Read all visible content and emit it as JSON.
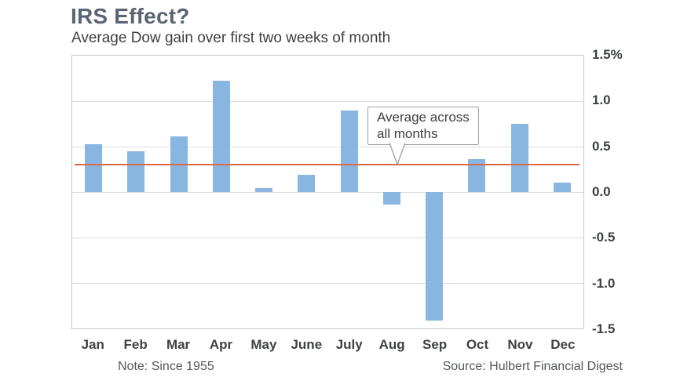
{
  "header": {
    "title": "IRS Effect?",
    "subtitle": "Average Dow gain over first two weeks of month"
  },
  "colors": {
    "title": "#5a6472",
    "subtitle": "#3c3e42",
    "bar": "#89b6e1",
    "average_line": "#d9694b"
  },
  "chart_data": {
    "type": "bar",
    "title": "IRS Effect?",
    "subtitle": "Average Dow gain over first two weeks of month",
    "categories": [
      "Jan",
      "Feb",
      "Mar",
      "Apr",
      "May",
      "June",
      "July",
      "Aug",
      "Sep",
      "Oct",
      "Nov",
      "Dec"
    ],
    "values": [
      0.53,
      0.45,
      0.61,
      1.22,
      0.04,
      0.19,
      0.9,
      -0.14,
      -1.41,
      0.36,
      0.75,
      0.1
    ],
    "average_line_value": 0.3,
    "ylim": [
      -1.5,
      1.5
    ],
    "ytick_labels": [
      "1.5%",
      "1.0",
      "0.5",
      "0.0",
      "-0.5",
      "-1.0",
      "-1.5"
    ],
    "grid": true,
    "legend": "none",
    "annotation": {
      "line1": "Average across",
      "line2": "all months"
    }
  },
  "footer": {
    "note": "Note: Since 1955",
    "source": "Source: Hulbert Financial Digest"
  }
}
